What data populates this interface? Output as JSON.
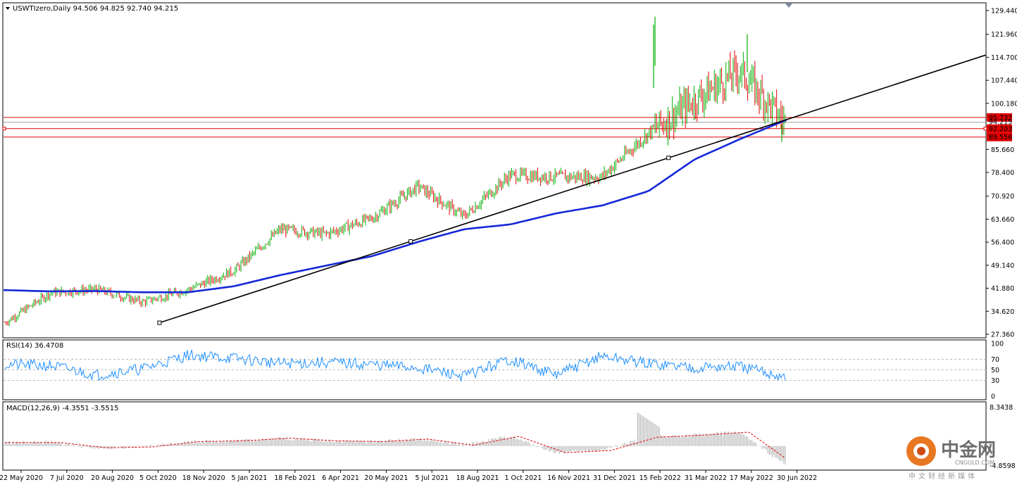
{
  "window": {
    "symbol_header": "USWTIzero,Daily  94.506 94.825 92.740 94.215"
  },
  "price_axis": {
    "ticks": [
      "129.440",
      "121.960",
      "114.700",
      "107.440",
      "100.180",
      "85.660",
      "78.400",
      "70.920",
      "63.660",
      "56.400",
      "49.140",
      "41.880",
      "34.620",
      "27.360"
    ],
    "tick_values": [
      129.44,
      121.96,
      114.7,
      107.44,
      100.18,
      85.66,
      78.4,
      70.92,
      63.66,
      56.4,
      49.14,
      41.88,
      34.62,
      27.36
    ],
    "current_price": "94.215",
    "levels": [
      {
        "label": "95.732",
        "value": 95.732,
        "color": "#e00000"
      },
      {
        "label": "92.203",
        "value": 92.203,
        "color": "#e00000"
      },
      {
        "label": "89.556",
        "value": 89.556,
        "color": "#e00000"
      }
    ]
  },
  "time_axis": {
    "labels": [
      "22 May 2020",
      "7 Jul 2020",
      "20 Aug 2020",
      "5 Oct 2020",
      "18 Nov 2020",
      "5 Jan 2021",
      "18 Feb 2021",
      "6 Apr 2021",
      "20 May 2021",
      "5 Jul 2021",
      "18 Aug 2021",
      "1 Oct 2021",
      "16 Nov 2021",
      "31 Dec 2021",
      "15 Feb 2022",
      "31 Mar 2022",
      "17 May 2022",
      "30 Jun 2022"
    ]
  },
  "rsi": {
    "header": "RSI(14) 36.4708",
    "levels": [
      "100",
      "70",
      "50",
      "30",
      "0"
    ],
    "level_values": [
      100,
      70,
      50,
      30,
      0
    ],
    "color": "#1e90ff"
  },
  "macd": {
    "header": "MACD(12,26,9) -4.3551 -3.5515",
    "top_label": "8.3438",
    "bottom_label": "-4.8598",
    "range": [
      -4.8598,
      8.3438
    ],
    "signal_color": "#e00000",
    "hist_color": "#b0b0b0"
  },
  "watermark": {
    "cn": "中金网",
    "en": "CNGOLD.COM",
    "sub": "中文财经新媒体"
  },
  "colors": {
    "bull": "#00b000",
    "bear": "#e00000",
    "ma": "#1428d8",
    "trend": "#000000",
    "grid": "#c8c8c8"
  },
  "chart_data": {
    "type": "candlestick",
    "symbol": "USWTIzero",
    "timeframe": "Daily",
    "last_bar": {
      "open": 94.506,
      "high": 94.825,
      "low": 92.74,
      "close": 94.215
    },
    "ylim": [
      27.36,
      129.44
    ],
    "x": [
      "22 May 2020",
      "7 Jul 2020",
      "20 Aug 2020",
      "5 Oct 2020",
      "18 Nov 2020",
      "5 Jan 2021",
      "18 Feb 2021",
      "6 Apr 2021",
      "20 May 2021",
      "5 Jul 2021",
      "18 Aug 2021",
      "1 Oct 2021",
      "16 Nov 2021",
      "31 Dec 2021",
      "15 Feb 2022",
      "31 Mar 2022",
      "17 May 2022",
      "30 Jun 2022"
    ],
    "close_approx": [
      31.0,
      40.5,
      41.5,
      37.5,
      41.5,
      47.5,
      60.5,
      59.0,
      64.0,
      74.0,
      64.5,
      77.5,
      77.0,
      77.0,
      90.5,
      101.0,
      110.5,
      94.2
    ],
    "series": [
      {
        "name": "ma",
        "values": [
          41.3,
          40.9,
          41.0,
          40.6,
          40.6,
          42.5,
          46.0,
          49.0,
          52.0,
          56.5,
          60.5,
          62.0,
          65.5,
          68.0,
          72.5,
          82.5,
          89.0,
          95.0
        ]
      }
    ],
    "trendline": {
      "points": [
        [
          "5 Oct 2020",
          31.0
        ],
        [
          "5 Jul 2021",
          56.3
        ],
        [
          "15 Feb 2022",
          83.0
        ]
      ]
    },
    "horizontal_levels": [
      95.732,
      92.203,
      89.556
    ]
  }
}
